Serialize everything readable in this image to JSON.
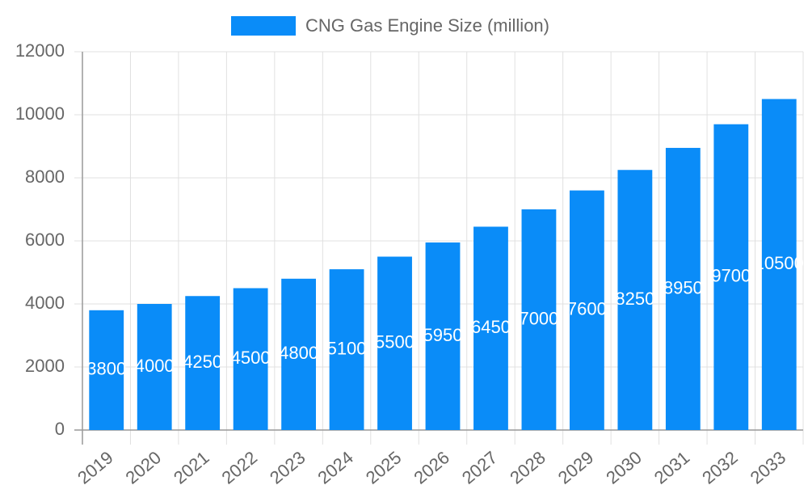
{
  "chart_data": {
    "type": "bar",
    "legend_label": "CNG Gas Engine Size (million)",
    "categories": [
      "2019",
      "2020",
      "2021",
      "2022",
      "2023",
      "2024",
      "2025",
      "2026",
      "2027",
      "2028",
      "2029",
      "2030",
      "2031",
      "2032",
      "2033"
    ],
    "values": [
      3800,
      4000,
      4250,
      4500,
      4800,
      5100,
      5500,
      5950,
      6450,
      7000,
      7600,
      8250,
      8950,
      9700,
      10500
    ],
    "color": "#0a8cf8",
    "ylim": [
      0,
      12000
    ],
    "yticks": [
      0,
      2000,
      4000,
      6000,
      8000,
      10000,
      12000
    ],
    "grid": true,
    "legend": "top"
  }
}
